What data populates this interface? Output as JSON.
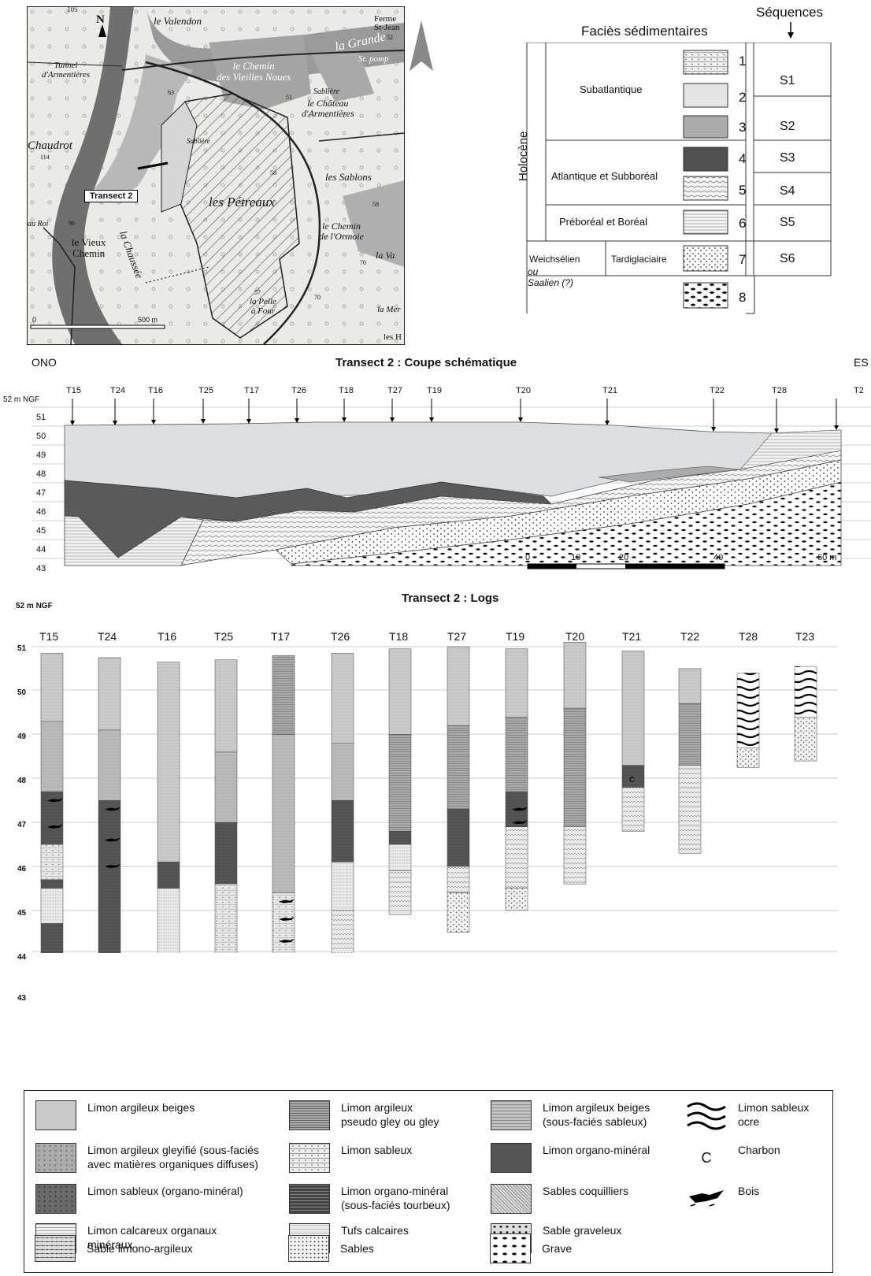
{
  "map": {
    "labels": {
      "north": "N",
      "valendon": "le Valendon",
      "ferme": "Ferme\nSt-Jean",
      "grande": "la Grande",
      "stpomp": "St. pomp",
      "chemin_noues": "le Chemin\ndes Vieilles Noues",
      "sabliere1": "Sablière",
      "chateau": "le Château\nd'Armentières",
      "tunnel": "Tunnel\nd'Armentières",
      "chaudrot": "Chaudrot",
      "sabliere2": "Sablière",
      "sablons": "les Sablons",
      "petreaux": "les Pétreaux",
      "transect": "Transect 2",
      "chaussee": "la Chaussée",
      "auroi": "au Roi",
      "vieux_chemin": "le Vieux\nChemin",
      "chemin_ormoie": "le Chemin\nde l'Ormoie",
      "lava": "la Va",
      "pelle": "la Pelle\nà Four",
      "mer": "la Mer",
      "les_h": "les H",
      "n105": "105",
      "n114": "114",
      "n96": "96",
      "n52": "52",
      "n51": "51",
      "n58a": "58",
      "n58b": "58",
      "n57": "57",
      "n70a": "70",
      "n70b": "70",
      "n63": "63",
      "scale0": "0",
      "scale500": "500 m"
    }
  },
  "facies": {
    "title": "Faciès sédimentaires",
    "seq_title": "Séquences",
    "holocene": "Holocène",
    "subatlantique": "Subatlantique",
    "atlantique": "Atlantique et Subboréal",
    "preboreal": "Préboréal et Boréal",
    "weichselien": "Weichsélien",
    "ou": "ou",
    "saalien": "Saalien (?)",
    "tardiglaciaire": "Tardiglaciaire",
    "numbers": [
      "1",
      "2",
      "3",
      "4",
      "5",
      "6",
      "7",
      "8"
    ],
    "seqs": [
      "S1",
      "S2",
      "S3",
      "S4",
      "S5",
      "S6"
    ]
  },
  "coupe": {
    "title": "Transect 2 : Coupe schématique",
    "left": "ONO",
    "right": "ES",
    "datum": "52 m NGF",
    "ylabels": [
      "51",
      "50",
      "49",
      "48",
      "47",
      "46",
      "45",
      "44",
      "43"
    ],
    "cores": [
      "T15",
      "T24",
      "T16",
      "T25",
      "T17",
      "T26",
      "T18",
      "T27",
      "T19",
      "T20",
      "T21",
      "T22",
      "T28",
      "T2"
    ],
    "scale": [
      "0",
      "10",
      "20",
      "40",
      "60 m"
    ]
  },
  "logs": {
    "title": "Transect 2 : Logs",
    "datum": "52 m NGF",
    "ylabels": [
      "51",
      "50",
      "49",
      "48",
      "47",
      "46",
      "45",
      "44",
      "43"
    ],
    "cores": [
      "T15",
      "T24",
      "T16",
      "T25",
      "T17",
      "T26",
      "T18",
      "T27",
      "T19",
      "T20",
      "T21",
      "T22",
      "T28",
      "T23"
    ],
    "charbon_mark": "C"
  },
  "legend": {
    "items": [
      "Limon argileux beiges",
      "Limon argileux\npseudo gley ou gley",
      "Limon argileux beiges\n(sous-faciés sableux)",
      "Limon sableux\nocre",
      "Limon argileux gleyifié (sous-faciés\navec matières organiques diffuses)",
      "Limon sableux",
      "Limon organo-minéral",
      "Charbon",
      "Limon sableux (organo-minéral)",
      "Limon organo-minéral\n(sous-faciés tourbeux)",
      "Sables coquilliers",
      "Bois",
      "Limon calcareux organaux\nminéraux",
      "Tufs calcaires",
      "Sable graveleux",
      "Sable limono-argileux",
      "Sables",
      "Grave"
    ],
    "charbon_symbol": "C"
  }
}
